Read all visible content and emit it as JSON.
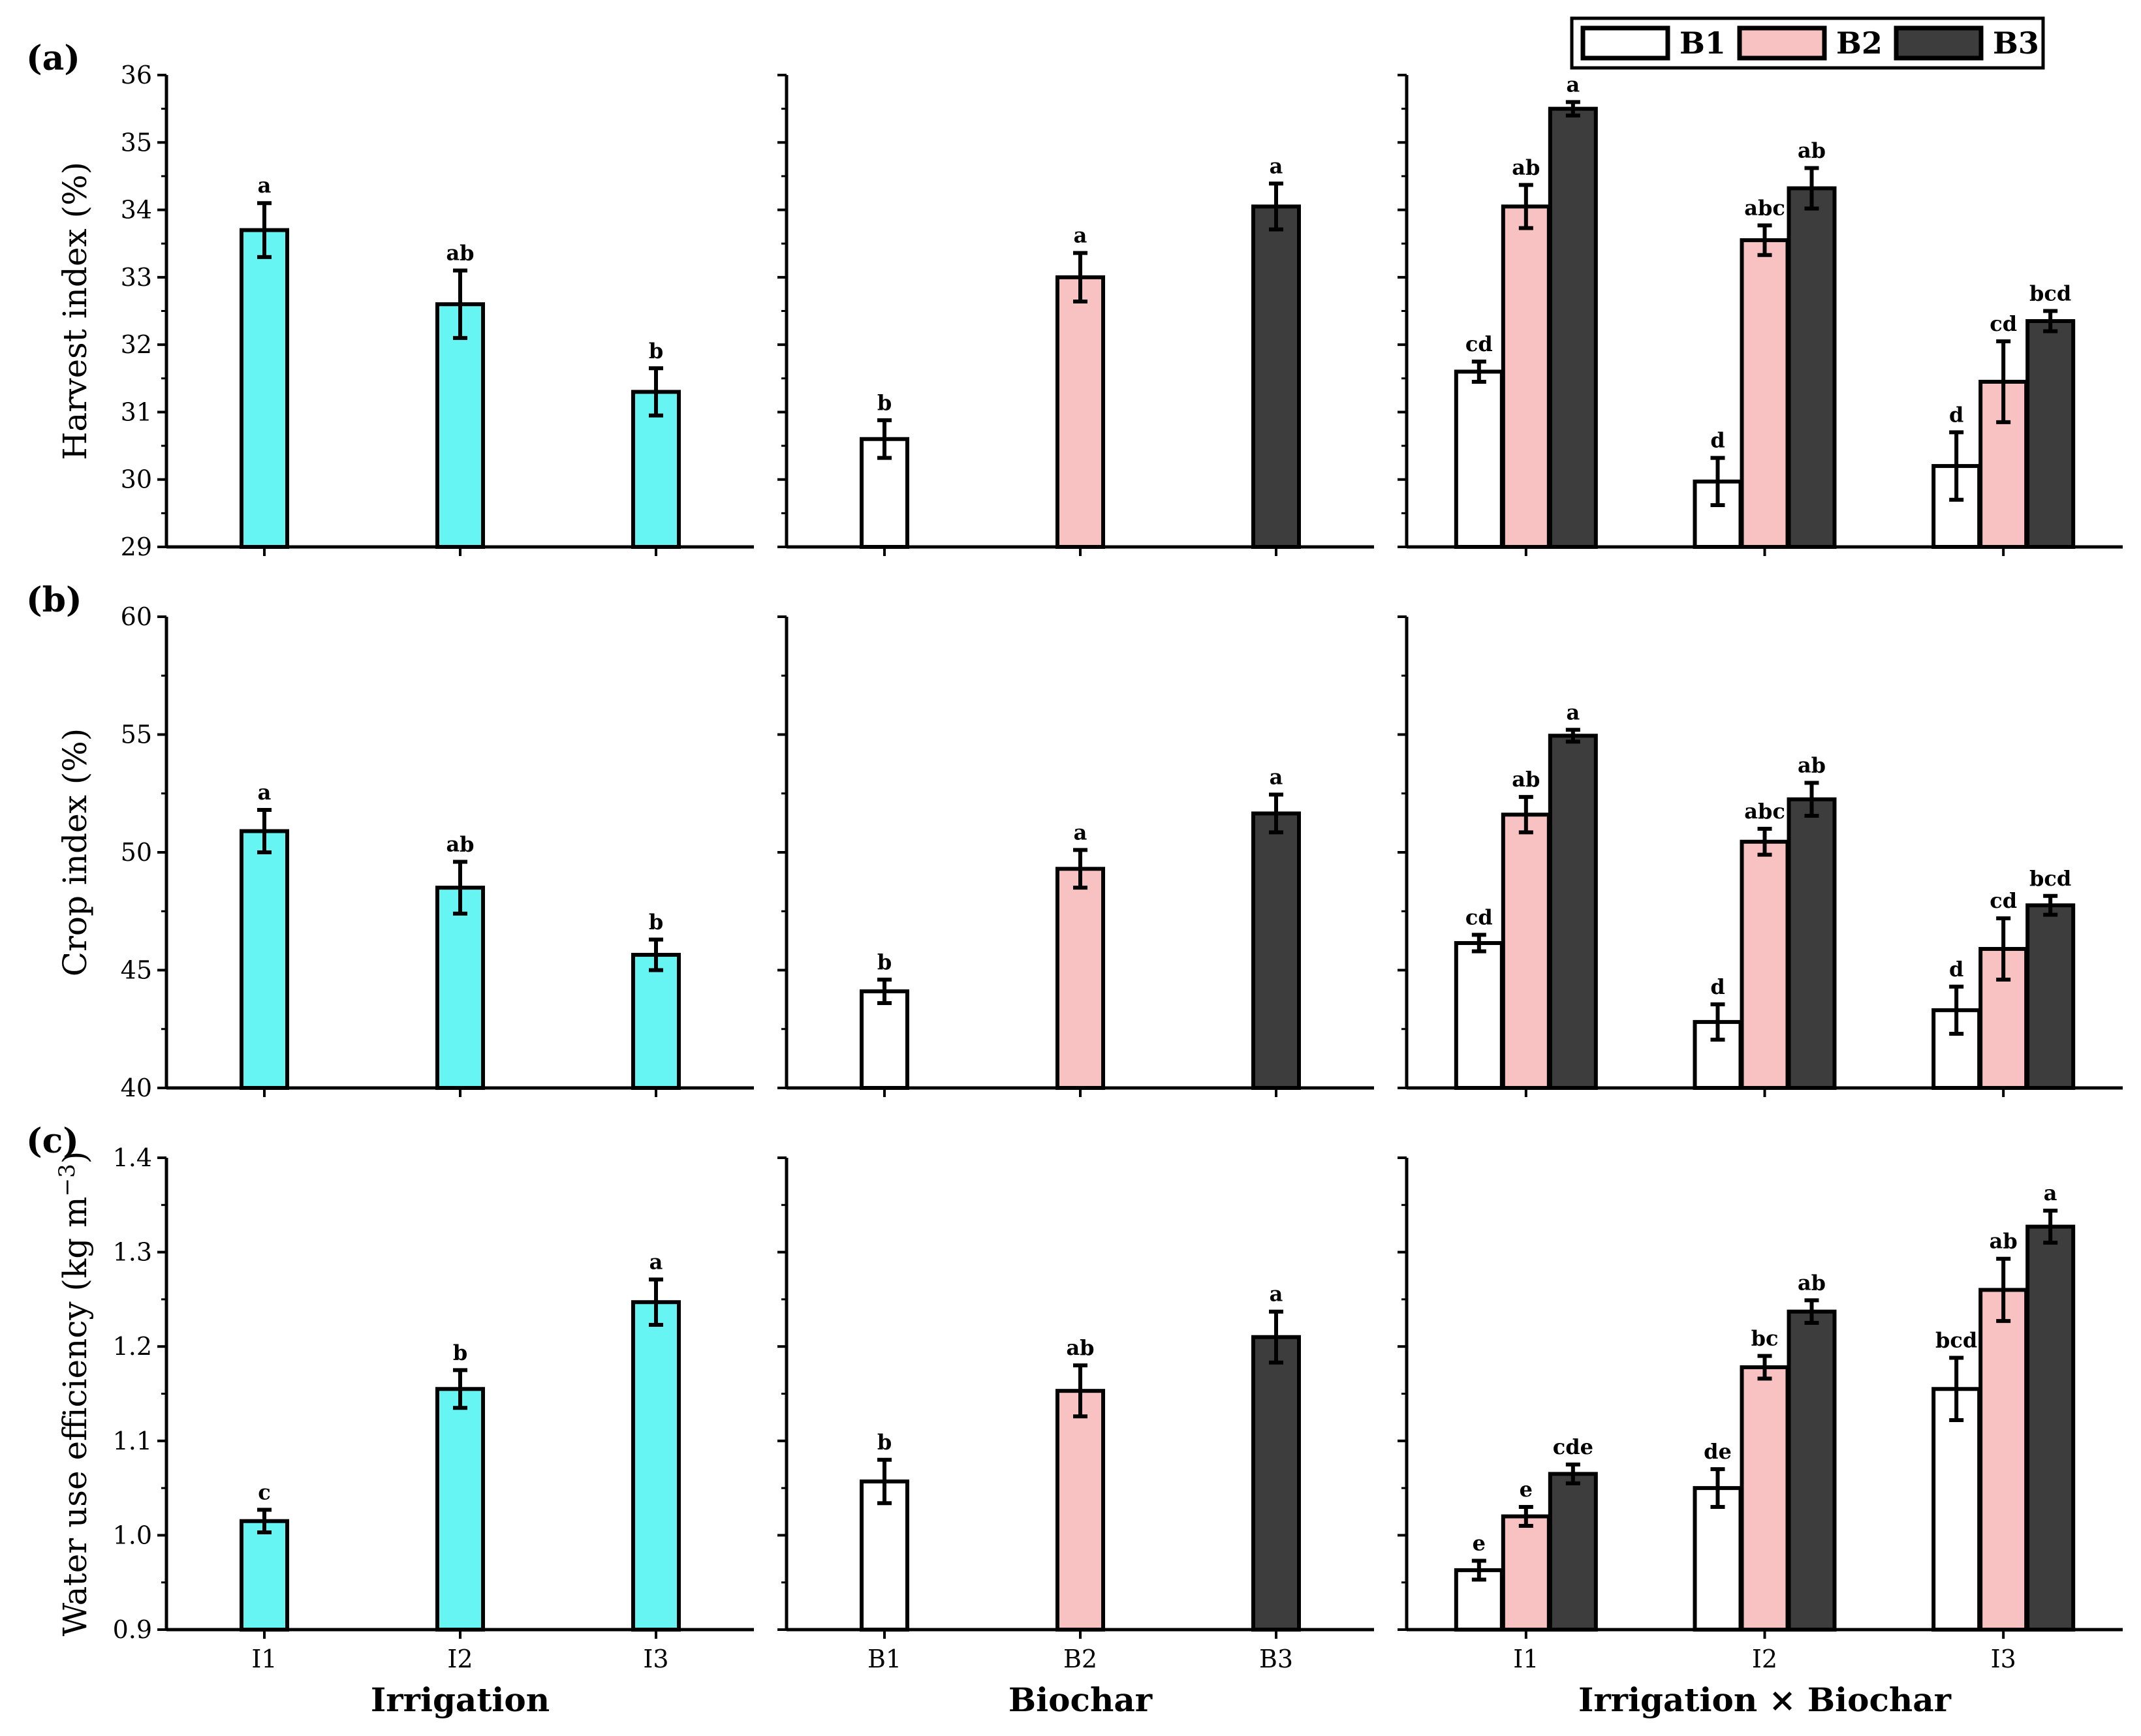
{
  "colors": {
    "irrigation": "#66f5f3",
    "B1": "#ffffff",
    "B2": "#f9c2c2",
    "B3": "#3d3d3d",
    "edge": "#000000"
  },
  "legend": {
    "entries": [
      "B1",
      "B2",
      "B3"
    ],
    "colors": [
      "#ffffff",
      "#f9c2c2",
      "#3d3d3d"
    ],
    "placement": "top-right"
  },
  "xtitles": [
    "Irrigation",
    "Biochar",
    "Irrigation × Biochar"
  ],
  "chart_data": [
    {
      "id": "a",
      "tag": "(a)",
      "type": "bar",
      "ylabel": "Harvest index (%)",
      "ylabel_sup": "",
      "ylabel_end": "",
      "ylim": [
        29,
        36
      ],
      "yticks": [
        29,
        30,
        31,
        32,
        33,
        34,
        35,
        36
      ],
      "ytick_labels": [
        "29",
        "30",
        "31",
        "32",
        "33",
        "34",
        "35",
        "36"
      ],
      "irrigation": {
        "categories": [
          "I1",
          "I2",
          "I3"
        ],
        "values": [
          33.7,
          32.6,
          31.3
        ],
        "errors": [
          0.4,
          0.5,
          0.35
        ],
        "letters": [
          "a",
          "ab",
          "b"
        ]
      },
      "biochar": {
        "categories": [
          "B1",
          "B2",
          "B3"
        ],
        "values": [
          30.6,
          33.0,
          34.05
        ],
        "errors": [
          0.28,
          0.36,
          0.34
        ],
        "letters": [
          "b",
          "a",
          "a"
        ]
      },
      "interaction": {
        "categories": [
          "I1",
          "I2",
          "I3"
        ],
        "series": [
          {
            "name": "B1",
            "values": [
              31.6,
              29.97,
              30.2
            ],
            "errors": [
              0.15,
              0.35,
              0.5
            ],
            "letters": [
              "cd",
              "d",
              "d"
            ]
          },
          {
            "name": "B2",
            "values": [
              34.05,
              33.55,
              31.45
            ],
            "errors": [
              0.32,
              0.22,
              0.6
            ],
            "letters": [
              "ab",
              "abc",
              "cd"
            ]
          },
          {
            "name": "B3",
            "values": [
              35.5,
              34.32,
              32.35
            ],
            "errors": [
              0.1,
              0.3,
              0.15
            ],
            "letters": [
              "a",
              "ab",
              "bcd"
            ]
          }
        ]
      }
    },
    {
      "id": "b",
      "tag": "(b)",
      "type": "bar",
      "ylabel": "Crop index (%)",
      "ylabel_sup": "",
      "ylabel_end": "",
      "ylim": [
        40,
        60
      ],
      "yticks": [
        40,
        45,
        50,
        55,
        60
      ],
      "ytick_labels": [
        "40",
        "45",
        "50",
        "55",
        "60"
      ],
      "irrigation": {
        "categories": [
          "I1",
          "I2",
          "I3"
        ],
        "values": [
          50.9,
          48.5,
          45.65
        ],
        "errors": [
          0.9,
          1.1,
          0.65
        ],
        "letters": [
          "a",
          "ab",
          "b"
        ]
      },
      "biochar": {
        "categories": [
          "B1",
          "B2",
          "B3"
        ],
        "values": [
          44.1,
          49.3,
          51.65
        ],
        "errors": [
          0.5,
          0.8,
          0.8
        ],
        "letters": [
          "b",
          "a",
          "a"
        ]
      },
      "interaction": {
        "categories": [
          "I1",
          "I2",
          "I3"
        ],
        "series": [
          {
            "name": "B1",
            "values": [
              46.15,
              42.8,
              43.3
            ],
            "errors": [
              0.35,
              0.75,
              1.0
            ],
            "letters": [
              "cd",
              "d",
              "d"
            ]
          },
          {
            "name": "B2",
            "values": [
              51.6,
              50.45,
              45.9
            ],
            "errors": [
              0.75,
              0.55,
              1.3
            ],
            "letters": [
              "ab",
              "abc",
              "cd"
            ]
          },
          {
            "name": "B3",
            "values": [
              54.95,
              52.25,
              47.75
            ],
            "errors": [
              0.25,
              0.7,
              0.4
            ],
            "letters": [
              "a",
              "ab",
              "bcd"
            ]
          }
        ]
      }
    },
    {
      "id": "c",
      "tag": "(c)",
      "type": "bar",
      "ylabel": "Water use efficiency (kg m",
      "ylabel_sup": "−3",
      "ylabel_end": ")",
      "ylim": [
        0.9,
        1.4
      ],
      "yticks": [
        0.9,
        1.0,
        1.1,
        1.2,
        1.3,
        1.4
      ],
      "ytick_labels": [
        "0.9",
        "1.0",
        "1.1",
        "1.2",
        "1.3",
        "1.4"
      ],
      "irrigation": {
        "categories": [
          "I1",
          "I2",
          "I3"
        ],
        "values": [
          1.015,
          1.155,
          1.247
        ],
        "errors": [
          0.012,
          0.02,
          0.024
        ],
        "letters": [
          "c",
          "b",
          "a"
        ]
      },
      "biochar": {
        "categories": [
          "B1",
          "B2",
          "B3"
        ],
        "values": [
          1.057,
          1.153,
          1.21
        ],
        "errors": [
          0.023,
          0.027,
          0.027
        ],
        "letters": [
          "b",
          "ab",
          "a"
        ]
      },
      "interaction": {
        "categories": [
          "I1",
          "I2",
          "I3"
        ],
        "series": [
          {
            "name": "B1",
            "values": [
              0.963,
              1.05,
              1.155
            ],
            "errors": [
              0.01,
              0.02,
              0.033
            ],
            "letters": [
              "e",
              "de",
              "bcd"
            ]
          },
          {
            "name": "B2",
            "values": [
              1.02,
              1.178,
              1.26
            ],
            "errors": [
              0.01,
              0.012,
              0.033
            ],
            "letters": [
              "e",
              "bc",
              "ab"
            ]
          },
          {
            "name": "B3",
            "values": [
              1.065,
              1.237,
              1.327
            ],
            "errors": [
              0.01,
              0.012,
              0.017
            ],
            "letters": [
              "cde",
              "ab",
              "a"
            ]
          }
        ]
      }
    }
  ]
}
